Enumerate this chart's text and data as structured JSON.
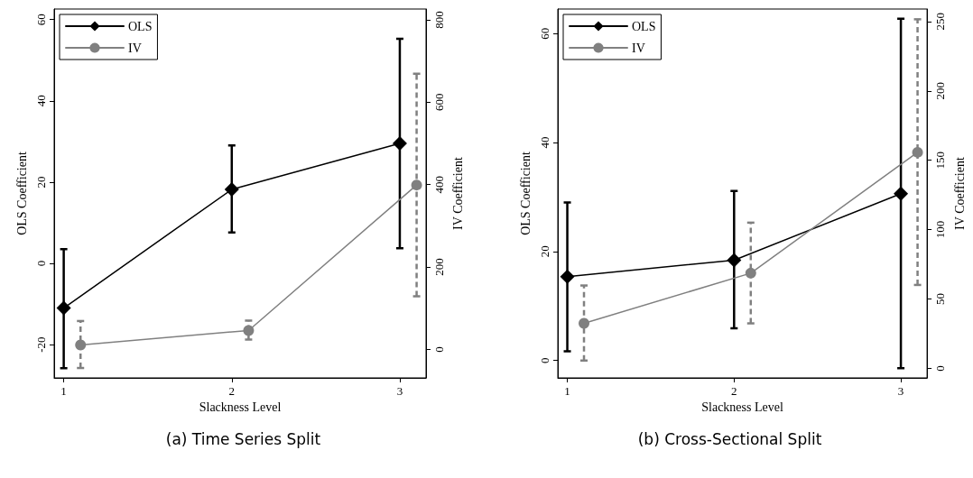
{
  "chart_data": [
    {
      "type": "line",
      "xlabel": "Slackness Level",
      "ylabel": "OLS Coefficient",
      "y2label": "IV Coefficient",
      "annotations": [
        "(a) Time Series Split"
      ],
      "xlim": [
        0.943,
        3.156
      ],
      "xticks": [
        1,
        2,
        3
      ],
      "ylim": [
        -28.2,
        62.6
      ],
      "yticks": [
        -20,
        0,
        20,
        40,
        60
      ],
      "y2lim": [
        -69,
        826
      ],
      "y2ticks": [
        0,
        200,
        400,
        600,
        800
      ],
      "grid": false,
      "legend": "top left",
      "series": [
        {
          "name": "OLS",
          "color": "#000000",
          "marker": "diamond",
          "x": [
            1,
            2,
            3
          ],
          "values": [
            -11.0,
            18.2,
            29.5
          ],
          "errors": [
            [
              -25.8,
              3.5
            ],
            [
              7.6,
              29.0
            ],
            [
              3.7,
              55.3
            ]
          ]
        },
        {
          "name": "IV",
          "color": "#808080",
          "marker": "circle",
          "axis": "y2",
          "x": [
            1.1,
            2.1,
            3.1
          ],
          "values": [
            11,
            46,
            399
          ],
          "errors": [
            [
              -45,
              69
            ],
            [
              24,
              70
            ],
            [
              129,
              669
            ]
          ]
        }
      ]
    },
    {
      "type": "line",
      "xlabel": "Slackness Level",
      "ylabel": "OLS Coefficient",
      "y2label": "IV Coefficient",
      "annotations": [
        "(b) Cross-Sectional Split"
      ],
      "xlim": [
        0.943,
        3.157
      ],
      "xticks": [
        1,
        2,
        3
      ],
      "ylim": [
        -3.2,
        64.5
      ],
      "yticks": [
        0,
        20,
        40,
        60
      ],
      "y2lim": [
        -6.9,
        259
      ],
      "y2ticks": [
        0,
        50,
        100,
        150,
        200,
        250
      ],
      "grid": false,
      "legend": "top left",
      "series": [
        {
          "name": "OLS",
          "color": "#000000",
          "marker": "diamond",
          "x": [
            1,
            2,
            3
          ],
          "values": [
            15.4,
            18.4,
            30.6
          ],
          "errors": [
            [
              1.7,
              29.0
            ],
            [
              5.9,
              31.1
            ],
            [
              -1.4,
              62.7
            ]
          ]
        },
        {
          "name": "IV",
          "color": "#808080",
          "marker": "circle",
          "axis": "y2",
          "x": [
            1.1,
            2.1,
            3.1
          ],
          "values": [
            32.4,
            68.6,
            155.7
          ],
          "errors": [
            [
              5.6,
              59.7
            ],
            [
              32.4,
              105
            ],
            [
              60.1,
              251.6
            ]
          ]
        }
      ]
    }
  ]
}
